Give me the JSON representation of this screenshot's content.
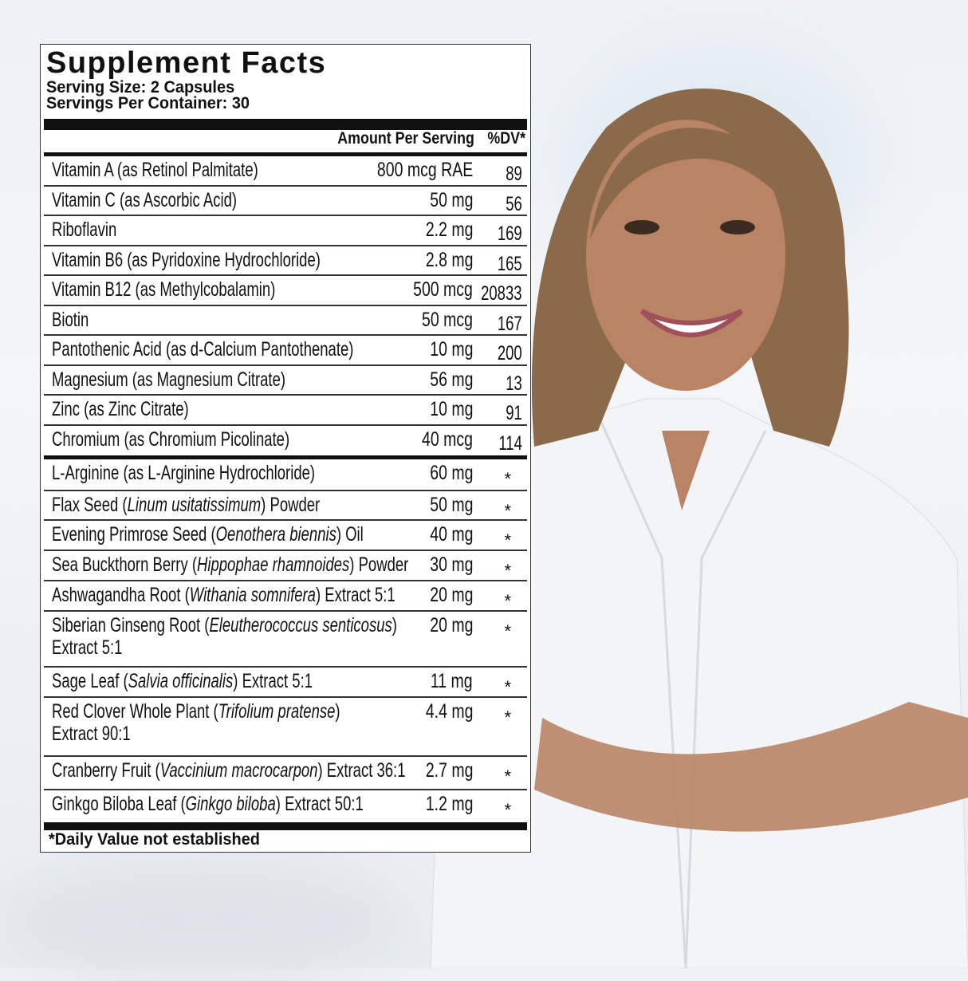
{
  "label": {
    "title": "Supplement Facts",
    "serving_size": "Serving Size: 2 Capsules",
    "servings_per_container": "Servings Per Container: 30",
    "header_amount": "Amount Per Serving",
    "header_dv": "%DV*",
    "vitamins": [
      {
        "name": "Vitamin A (as Retinol Palmitate)",
        "amount": "800 mcg RAE",
        "dv": "89"
      },
      {
        "name": "Vitamin C (as Ascorbic Acid)",
        "amount": "50 mg",
        "dv": "56"
      },
      {
        "name": "Riboflavin",
        "amount": "2.2 mg",
        "dv": "169"
      },
      {
        "name": "Vitamin B6 (as Pyridoxine Hydrochloride)",
        "amount": "2.8 mg",
        "dv": "165"
      },
      {
        "name": "Vitamin B12 (as Methylcobalamin)",
        "amount": "500 mcg",
        "dv": "20833"
      },
      {
        "name": "Biotin",
        "amount": "50 mcg",
        "dv": "167"
      },
      {
        "name": "Pantothenic Acid (as d-Calcium Pantothenate)",
        "amount": "10 mg",
        "dv": "200"
      },
      {
        "name": "Magnesium (as Magnesium Citrate)",
        "amount": "56 mg",
        "dv": "13"
      },
      {
        "name": "Zinc (as Zinc Citrate)",
        "amount": "10 mg",
        "dv": "91"
      },
      {
        "name": "Chromium (as Chromium Picolinate)",
        "amount": "40 mcg",
        "dv": "114"
      }
    ],
    "others": [
      {
        "pre": "L-Arginine (as L-Arginine Hydrochloride)",
        "latin": "",
        "post": "",
        "amount": "60 mg",
        "dv": "*"
      },
      {
        "pre": "Flax Seed (",
        "latin": "Linum usitatissimum",
        "post": ") Powder",
        "amount": "50 mg",
        "dv": "*"
      },
      {
        "pre": "Evening Primrose Seed (",
        "latin": "Oenothera biennis",
        "post": ") Oil",
        "amount": "40 mg",
        "dv": "*"
      },
      {
        "pre": "Sea Buckthorn Berry (",
        "latin": "Hippophae rhamnoides",
        "post": ") Powder",
        "amount": "30 mg",
        "dv": "*"
      },
      {
        "pre": "Ashwagandha Root (",
        "latin": "Withania somnifera",
        "post": ") Extract 5:1",
        "amount": "20 mg",
        "dv": "*"
      },
      {
        "pre": "Siberian Ginseng Root (",
        "latin": "Eleutherococcus senticosus",
        "post": ")",
        "line2": "Extract 5:1",
        "amount": "20 mg",
        "dv": "*"
      },
      {
        "pre": "Sage Leaf (",
        "latin": "Salvia officinalis",
        "post": ") Extract 5:1",
        "amount": "11 mg",
        "dv": "*"
      },
      {
        "pre": "Red Clover Whole Plant (",
        "latin": "Trifolium pratense",
        "post": ")",
        "line2": "Extract 90:1",
        "amount": "4.4 mg",
        "dv": "*"
      },
      {
        "pre": "Cranberry Fruit (",
        "latin": "Vaccinium macrocarpon",
        "post": ") Extract 36:1",
        "amount": "2.7 mg",
        "dv": "*"
      },
      {
        "pre": "Ginkgo Biloba Leaf (",
        "latin": "Ginkgo biloba",
        "post": ") Extract 50:1",
        "amount": "1.2 mg",
        "dv": "*"
      }
    ],
    "footnote": "*Daily Value not established"
  },
  "colors": {
    "text": "#111111",
    "label_bg": "#ffffff",
    "coat": "#f4f6f8",
    "hair": "#8a6a4a",
    "skin": "#b98466"
  }
}
